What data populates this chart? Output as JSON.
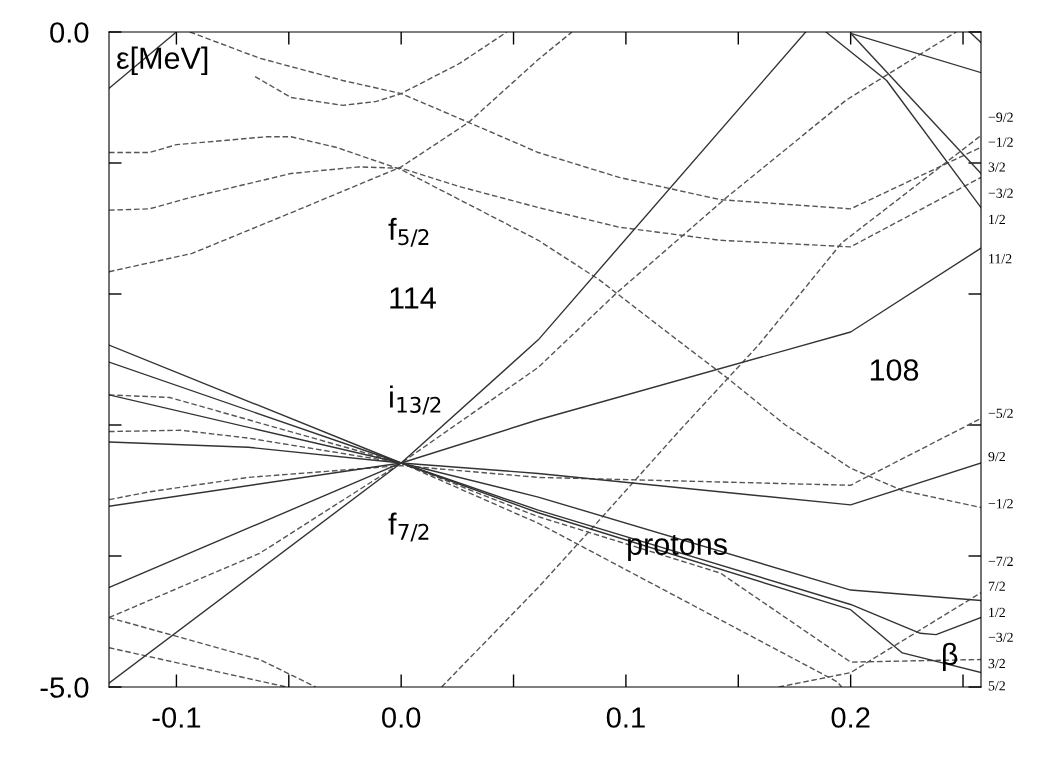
{
  "chart_data": {
    "type": "line",
    "xlim": [
      -0.13,
      0.258
    ],
    "ylim": [
      -5.0,
      0.0
    ],
    "xticks": [
      -0.1,
      {
        "value": -0.05,
        "label": null
      },
      {
        "value": 0,
        "label": "0.0"
      },
      {
        "value": 0.05,
        "label": null
      },
      0.1,
      {
        "value": 0.15,
        "label": null
      },
      0.2,
      {
        "value": 0.25,
        "label": null
      }
    ],
    "yticks": [
      {
        "value": 0,
        "label": "0.0"
      },
      {
        "value": -1,
        "label": null
      },
      {
        "value": -2,
        "label": null
      },
      {
        "value": -3,
        "label": null
      },
      {
        "value": -4,
        "label": null
      },
      {
        "value": -5,
        "label": "-5.0"
      }
    ],
    "grid": false,
    "marker": "none",
    "series": [
      {
        "color": "#555555",
        "line_style": "dashed",
        "x": [
          -0.094,
          -0.063,
          -0.026,
          0,
          0.03,
          0.061,
          0.097,
          0.142,
          0.2,
          0.258
        ],
        "values": [
          0,
          -0.2,
          -0.37,
          -0.47,
          -0.69,
          -0.92,
          -1.11,
          -1.28,
          -1.35,
          -0.88
        ]
      },
      {
        "color": "#555555",
        "line_style": "dashed",
        "x": [
          -0.065,
          -0.049,
          -0.026,
          -0.011,
          0,
          0.026,
          0.047
        ],
        "values": [
          -0.34,
          -0.5,
          -0.56,
          -0.53,
          -0.47,
          -0.24,
          0
        ]
      },
      {
        "color": "#555555",
        "line_style": "dashed",
        "x": [
          -0.13,
          -0.093,
          -0.049,
          0,
          0.03,
          0.061,
          0.076
        ],
        "values": [
          -1.83,
          -1.69,
          -1.38,
          -1.03,
          -0.69,
          -0.21,
          0
        ]
      },
      {
        "color": "#555555",
        "line_style": "dashed",
        "x": [
          -0.13,
          -0.112,
          -0.1,
          -0.06,
          -0.049,
          -0.029,
          0,
          0.061,
          0.088,
          0.119,
          0.145,
          0.171,
          0.2,
          0.223,
          0.258
        ],
        "values": [
          -0.92,
          -0.92,
          -0.86,
          -0.8,
          -0.8,
          -0.88,
          -1.05,
          -1.59,
          -1.89,
          -2.3,
          -2.64,
          -3.0,
          -3.33,
          -3.5,
          -3.63
        ]
      },
      {
        "color": "#555555",
        "line_style": "dashed",
        "x": [
          -0.13,
          -0.112,
          -0.093,
          -0.049,
          -0.019,
          0,
          0.026,
          0.061,
          0.097,
          0.142,
          0.2,
          0.258
        ],
        "values": [
          -1.36,
          -1.35,
          -1.26,
          -1.08,
          -1.03,
          -1.04,
          -1.18,
          -1.34,
          -1.49,
          -1.59,
          -1.64,
          -1.11
        ]
      },
      {
        "color": "#555555",
        "line_style": "dashed",
        "x": [
          -0.13,
          -0.063,
          0,
          0.061,
          0.096,
          0.145,
          0.198,
          0.247
        ],
        "values": [
          -4.47,
          -3.98,
          -3.29,
          -2.56,
          -1.99,
          -1.26,
          -0.52,
          0
        ]
      },
      {
        "color": "#555555",
        "line_style": "dashed",
        "x": [
          0.018,
          0.061,
          0.088,
          0.124,
          0.159,
          0.196,
          0.258
        ],
        "values": [
          -5.0,
          -4.24,
          -3.73,
          -3.04,
          -2.39,
          -1.61,
          -0.79
        ]
      },
      {
        "color": "#555555",
        "line_style": "dashed",
        "x": [
          -0.13,
          -0.112,
          -0.068,
          0,
          0.061,
          0.2,
          0.258
        ],
        "values": [
          -3.57,
          -3.51,
          -3.4,
          -3.31,
          -3.4,
          -3.46,
          -2.95
        ]
      },
      {
        "color": "#555555",
        "line_style": "dashed",
        "x": [
          -0.13,
          -0.098,
          -0.068,
          0,
          0.061,
          0.142,
          0.2,
          0.258
        ],
        "values": [
          -3.05,
          -3.04,
          -3.1,
          -3.29,
          -3.7,
          -4.13,
          -4.81,
          -4.79
        ]
      },
      {
        "color": "#555555",
        "line_style": "dashed",
        "x": [
          -0.13,
          -0.103,
          0,
          0.061,
          0.194,
          0.196
        ],
        "values": [
          -2.77,
          -2.79,
          -3.29,
          -3.75,
          -4.96,
          -5.0
        ]
      },
      {
        "color": "#555555",
        "line_style": "dashed",
        "x": [
          0.168,
          0.2,
          0.258
        ],
        "values": [
          -5.0,
          -4.89,
          -4.28
        ]
      },
      {
        "color": "#555555",
        "line_style": "dashed",
        "x": [
          -0.13,
          -0.063,
          -0.038
        ],
        "values": [
          -4.47,
          -4.79,
          -5.0
        ]
      },
      {
        "color": "#555555",
        "line_style": "dashed",
        "x": [
          -0.13,
          -0.051
        ],
        "values": [
          -4.7,
          -5.0
        ]
      },
      {
        "color": "#333333",
        "line_style": "solid",
        "x": [
          -0.13,
          -0.1
        ],
        "values": [
          -0.43,
          0
        ]
      },
      {
        "color": "#333333",
        "line_style": "solid",
        "x": [
          -0.13,
          0,
          0.061,
          0.18
        ],
        "values": [
          -4.97,
          -3.29,
          -2.35,
          0
        ]
      },
      {
        "color": "#333333",
        "line_style": "solid",
        "x": [
          0.189,
          0.216,
          0.258
        ],
        "values": [
          0,
          -0.37,
          -1.34
        ]
      },
      {
        "color": "#333333",
        "line_style": "solid",
        "x": [
          0.2,
          0.258
        ],
        "values": [
          -0.01,
          -1.08
        ]
      },
      {
        "color": "#333333",
        "line_style": "solid",
        "x": [
          0.2,
          0.258
        ],
        "values": [
          -0.01,
          -0.31
        ]
      },
      {
        "color": "#333333",
        "line_style": "solid",
        "x": [
          0.253,
          0.258
        ],
        "values": [
          0,
          -0.08
        ]
      },
      {
        "color": "#333333",
        "line_style": "solid",
        "x": [
          -0.13,
          0,
          0.061,
          0.2,
          0.223,
          0.258
        ],
        "values": [
          -2.39,
          -3.29,
          -3.67,
          -4.41,
          -4.74,
          -4.89
        ]
      },
      {
        "color": "#333333",
        "line_style": "solid",
        "x": [
          -0.13,
          0,
          0.061,
          0.2,
          0.231,
          0.238,
          0.258
        ],
        "values": [
          -2.52,
          -3.29,
          -3.65,
          -4.37,
          -4.59,
          -4.6,
          -4.47
        ]
      },
      {
        "color": "#333333",
        "line_style": "solid",
        "x": [
          -0.13,
          0,
          0.061,
          0.2,
          0.258
        ],
        "values": [
          -2.77,
          -3.29,
          -3.55,
          -4.26,
          -4.34
        ]
      },
      {
        "color": "#333333",
        "line_style": "solid",
        "x": [
          -0.13,
          -0.068,
          0,
          0.061,
          0.2,
          0.258
        ],
        "values": [
          -3.13,
          -3.17,
          -3.29,
          -3.37,
          -3.61,
          -3.29
        ]
      },
      {
        "color": "#333333",
        "line_style": "solid",
        "x": [
          -0.13,
          0,
          0.061,
          0.2,
          0.258
        ],
        "values": [
          -3.62,
          -3.29,
          -2.96,
          -2.29,
          -1.65
        ]
      },
      {
        "color": "#333333",
        "line_style": "solid",
        "x": [
          -0.13,
          0
        ],
        "values": [
          -4.24,
          -3.29
        ]
      }
    ],
    "annotations": [
      "ε[MeV]",
      "f$_{5/2}$",
      "114",
      "i$_{13/2}$",
      "f$_{7/2}$",
      "protons",
      "108",
      "β",
      "−9/2",
      "−1/2",
      "3/2",
      "−3/2",
      "1/2",
      "11/2",
      "−5/2",
      "9/2",
      "−1/2",
      "−7/2",
      "7/2",
      "1/2",
      "−3/2",
      "3/2",
      "5/2"
    ]
  }
}
